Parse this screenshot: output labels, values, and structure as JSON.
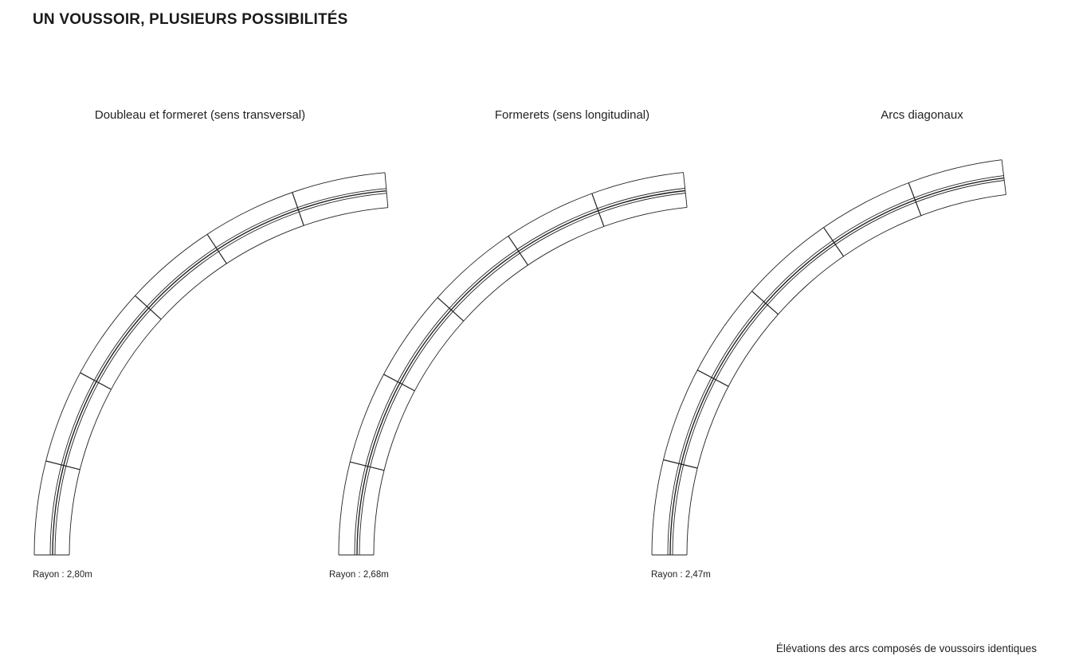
{
  "page": {
    "title": "UN VOUSSOIR, PLUSIEURS POSSIBILITÉS",
    "caption": "Élévations des arcs composés de voussoirs identiques"
  },
  "arches": [
    {
      "label": "Doubleau et formeret (sens transversal)",
      "radius_label": "Rayon : 2,80m",
      "radius_m": 2.8,
      "voussoirs": 6
    },
    {
      "label": "Formerets (sens longitudinal)",
      "radius_label": "Rayon : 2,68m",
      "radius_m": 2.68,
      "voussoirs": 6
    },
    {
      "label": "Arcs diagonaux",
      "radius_label": "Rayon : 2,47m",
      "radius_m": 2.47,
      "voussoirs": 6
    }
  ]
}
